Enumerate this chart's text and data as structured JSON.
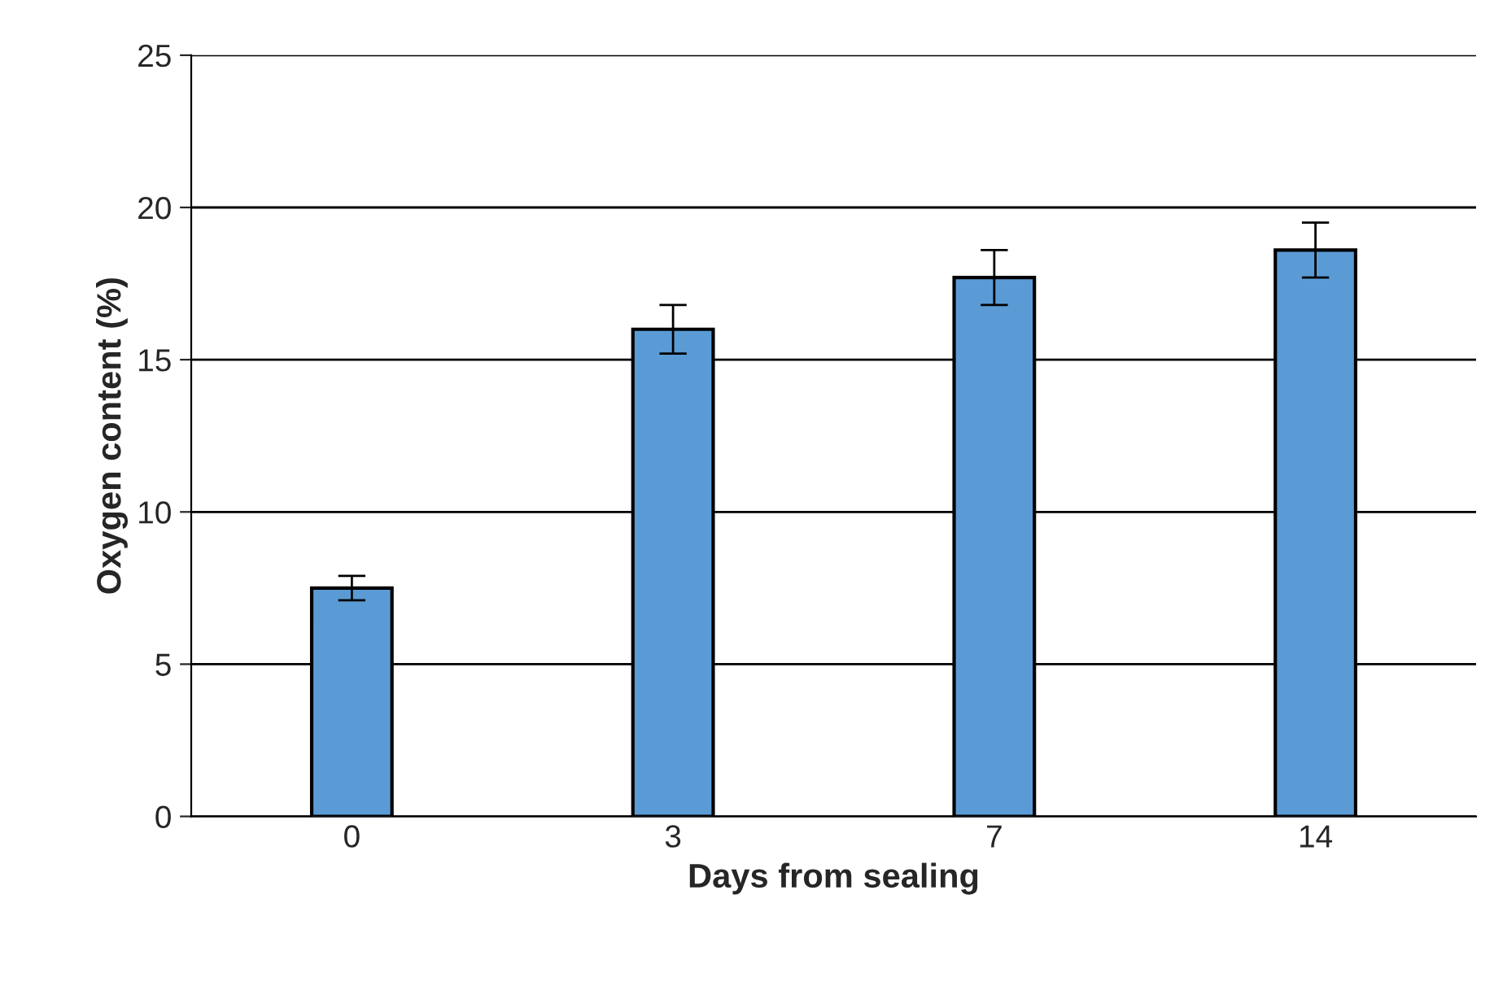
{
  "chart_data": {
    "type": "bar",
    "xlabel": "Days from sealing",
    "ylabel": "Oxygen content (%)",
    "categories": [
      "0",
      "3",
      "7",
      "14"
    ],
    "values": [
      7.5,
      16.0,
      17.7,
      18.6
    ],
    "errors": [
      0.4,
      0.8,
      0.9,
      0.9
    ],
    "color": "#5b9bd5",
    "ylim": [
      0,
      25
    ],
    "yticks": [
      0,
      5,
      10,
      15,
      20,
      25
    ],
    "grid": "y"
  }
}
